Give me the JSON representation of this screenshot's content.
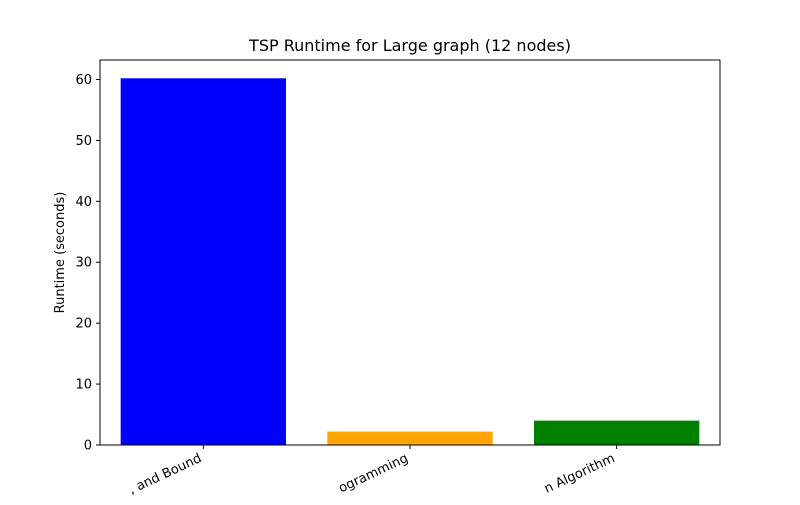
{
  "chart_data": {
    "type": "bar",
    "title": "TSP Runtime for Large graph (12 nodes)",
    "xlabel": "",
    "ylabel": "Runtime (seconds)",
    "categories": [
      "Branch and Bound",
      "Dynamic Programming",
      "Approximation Algorithm"
    ],
    "visible_category_labels": [
      ", and Bound",
      "ogramming",
      "n Algorithm"
    ],
    "values": [
      60.2,
      2.2,
      4.0
    ],
    "colors": [
      "#0000ff",
      "#ffa500",
      "#008000"
    ],
    "ylim": [
      0,
      63.2
    ],
    "yticks": [
      0,
      10,
      20,
      30,
      40,
      50,
      60
    ],
    "grid": false,
    "legend": "none"
  }
}
